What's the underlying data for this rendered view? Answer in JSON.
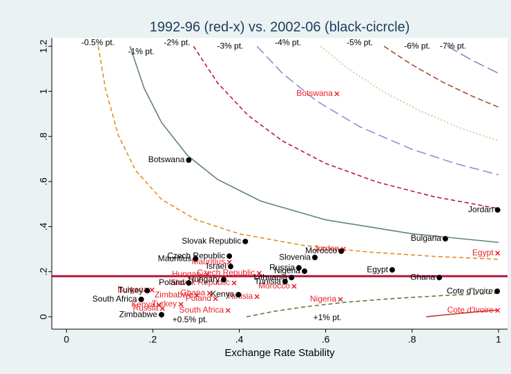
{
  "chart_data": {
    "type": "scatter",
    "title": "1992-96 (red-x) vs. 2002-06 (black-cicrcle)",
    "x_label": "Exchange Rate Stability",
    "xlim": [
      -0.034,
      1.021
    ],
    "ylim": [
      -0.055,
      1.237
    ],
    "xticks": [
      0,
      {
        "value": 0.2,
        "label": ".2"
      },
      {
        "value": 0.4,
        "label": ".4"
      },
      {
        "value": 0.6,
        "label": ".6"
      },
      {
        "value": 0.8,
        "label": ".8"
      },
      1
    ],
    "yticks": [
      0,
      {
        "value": 0.2,
        "label": ".2"
      },
      {
        "value": 0.4,
        "label": ".4"
      },
      {
        "value": 0.6,
        "label": ".6"
      },
      {
        "value": 0.8,
        "label": ".8"
      },
      1,
      1.2
    ],
    "hline": {
      "value": 0.18,
      "color": "#b5123a"
    },
    "lines": [
      {
        "color": "#e8891e",
        "dash": "6,4",
        "x": [
          0.0735,
          0.09,
          0.12,
          0.16,
          0.22,
          0.3,
          0.4,
          0.55,
          0.7,
          0.85,
          1.0
        ],
        "values": [
          1.2,
          1.013,
          0.805,
          0.649,
          0.521,
          0.43,
          0.368,
          0.316,
          0.287,
          0.268,
          0.255
        ]
      },
      {
        "color": "#5f8276",
        "dash": "none",
        "x": [
          0.147,
          0.18,
          0.22,
          0.28,
          0.35,
          0.45,
          0.6,
          0.8,
          1.0
        ],
        "values": [
          1.2,
          1.013,
          0.862,
          0.716,
          0.609,
          0.513,
          0.43,
          0.368,
          0.33
        ]
      },
      {
        "color": "#c0143c",
        "dash": "6,4",
        "x": [
          0.294,
          0.35,
          0.42,
          0.5,
          0.6,
          0.72,
          0.85,
          1.0
        ],
        "values": [
          1.2,
          1.037,
          0.894,
          0.78,
          0.68,
          0.597,
          0.533,
          0.48
        ]
      },
      {
        "color": "#8e8ed6",
        "dash": "14,6",
        "x": [
          0.441,
          0.5,
          0.58,
          0.68,
          0.8,
          0.9,
          1.0
        ],
        "values": [
          1.2,
          1.08,
          0.956,
          0.842,
          0.743,
          0.68,
          0.63
        ]
      },
      {
        "color": "#c4c48a",
        "dash": "2,3",
        "x": [
          0.588,
          0.65,
          0.73,
          0.82,
          0.91,
          1.0
        ],
        "values": [
          1.2,
          1.103,
          1.002,
          0.912,
          0.839,
          0.78
        ]
      },
      {
        "color": "#a0522d",
        "dash": "8,4",
        "x": [
          0.735,
          0.8,
          0.87,
          0.94,
          1.0
        ],
        "values": [
          1.2,
          1.118,
          1.042,
          0.978,
          0.93
        ]
      },
      {
        "color": "#7a8fb0",
        "dash": "16,6",
        "x": [
          0.882,
          0.94,
          1.0
        ],
        "values": [
          1.2,
          1.137,
          1.08
        ]
      },
      {
        "color": "#5a7a3a",
        "dash": "6,4",
        "x": [
          0.417,
          0.48,
          0.56,
          0.65,
          0.75,
          0.87,
          1.0
        ],
        "values": [
          0.0,
          0.024,
          0.046,
          0.065,
          0.08,
          0.094,
          0.105
        ]
      },
      {
        "color": "#c0392b",
        "dash": "none",
        "x": [
          0.833,
          0.9,
          0.95,
          1.0
        ],
        "values": [
          0.0,
          0.013,
          0.022,
          0.03
        ]
      }
    ],
    "annotations": [
      {
        "text": "-0.5% pt.",
        "x": 0.073,
        "y": 1.215
      },
      {
        "text": "-1% pt.",
        "x": 0.173,
        "y": 1.175
      },
      {
        "text": "-2% pt.",
        "x": 0.256,
        "y": 1.215
      },
      {
        "text": "-3% pt.",
        "x": 0.379,
        "y": 1.2
      },
      {
        "text": "-4% pt.",
        "x": 0.513,
        "y": 1.215
      },
      {
        "text": "-5% pt.",
        "x": 0.679,
        "y": 1.215
      },
      {
        "text": "-6% pt.",
        "x": 0.812,
        "y": 1.2
      },
      {
        "text": "-7% pt.",
        "x": 0.895,
        "y": 1.2
      },
      {
        "text": "+0.5% pt.",
        "x": 0.286,
        "y": -0.015
      },
      {
        "text": "+1% pt.",
        "x": 0.604,
        "y": -0.006
      }
    ],
    "series": [
      {
        "color": "#e8202a",
        "marker": "x",
        "labels": [
          "Botswana",
          "Egypt",
          "Cote d'Ivoire",
          "Jordan",
          "Mauritius",
          "Czech Republic",
          "Hungary",
          "Slovak Republic",
          "Morocco",
          "Nigeria",
          "Tunisia",
          "Poland",
          "Ghana",
          "Zimbabwe",
          "Bulgaria",
          "Turkey",
          "Kenya",
          "Russia",
          "South Africa"
        ],
        "x": [
          0.626,
          0.998,
          0.998,
          0.641,
          0.377,
          0.446,
          0.326,
          0.388,
          0.527,
          0.634,
          0.441,
          0.345,
          0.331,
          0.302,
          0.198,
          0.265,
          0.214,
          0.222,
          0.374
        ],
        "values": [
          0.989,
          0.282,
          0.028,
          0.3,
          0.242,
          0.193,
          0.187,
          0.15,
          0.135,
          0.077,
          0.089,
          0.08,
          0.104,
          0.095,
          0.119,
          0.055,
          0.052,
          0.037,
          0.028
        ]
      },
      {
        "color": "#000000",
        "marker": "circle",
        "labels": [
          "Botswana",
          "Jordan",
          "Bulgaria",
          "Slovak Republic",
          "Czech Republic",
          "Mauritius",
          "Israel",
          "Morocco",
          "Slovenia",
          "Russia",
          "Nigeria",
          "Egypt",
          "Ghana",
          "Lithuania",
          "Hungary",
          "Tunisia",
          "Poland",
          "Turkey",
          "Kenya",
          "South Africa",
          "Zimbabwe",
          "Cote d'Ivoire"
        ],
        "x": [
          0.283,
          0.998,
          0.877,
          0.414,
          0.377,
          0.299,
          0.38,
          0.636,
          0.575,
          0.538,
          0.551,
          0.754,
          0.863,
          0.521,
          0.364,
          0.506,
          0.283,
          0.187,
          0.398,
          0.173,
          0.22,
          0.997
        ],
        "values": [
          0.695,
          0.474,
          0.346,
          0.334,
          0.269,
          0.257,
          0.223,
          0.291,
          0.263,
          0.217,
          0.202,
          0.208,
          0.174,
          0.174,
          0.165,
          0.156,
          0.15,
          0.116,
          0.098,
          0.077,
          0.009,
          0.113
        ]
      }
    ]
  }
}
